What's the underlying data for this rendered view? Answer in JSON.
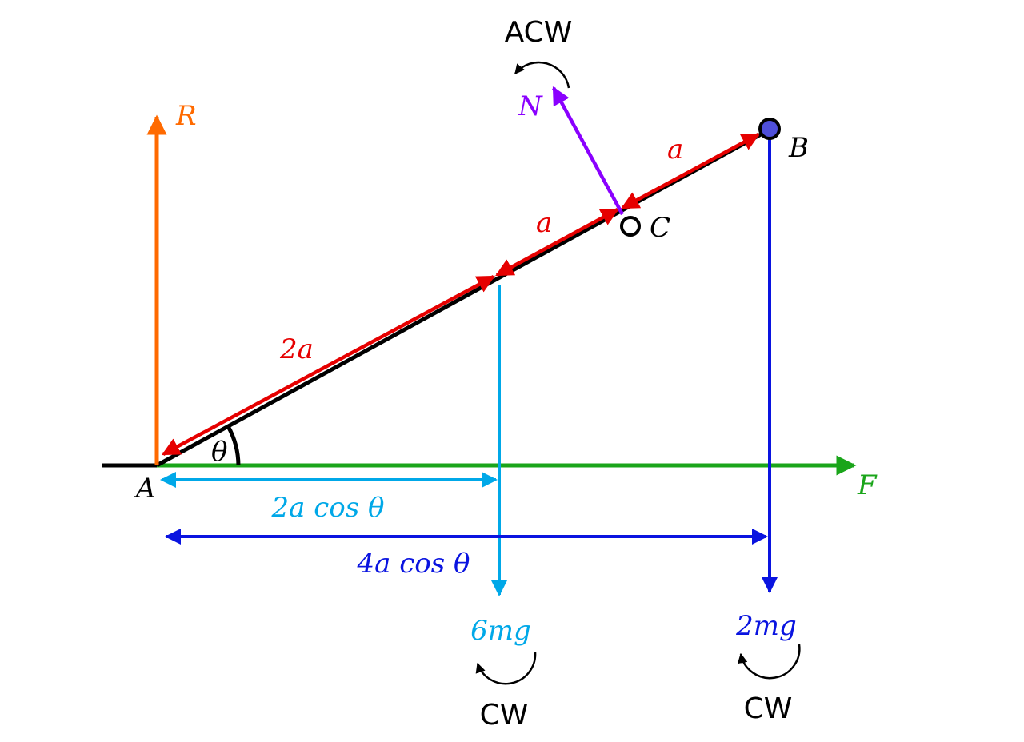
{
  "labels": {
    "R": "R",
    "N": "N",
    "B": "B",
    "C": "C",
    "A": "A",
    "F": "F",
    "theta": "θ",
    "seg_ab_upper": "a",
    "seg_ab_middle": "a",
    "seg_2a": "2a",
    "dist_2acos": "2a cos θ",
    "dist_4acos": "4a cos θ",
    "weight_6mg": "6mg",
    "weight_2mg": "2mg",
    "moment_N": "ACW",
    "moment_6mg": "CW",
    "moment_2mg": "CW"
  },
  "colors": {
    "rod": "#000000",
    "R": "#ff6a00",
    "N": "#8a00ff",
    "lengths": "#e60000",
    "weight_6mg": "#00a8e8",
    "weight_2mg": "#0a14e0",
    "F": "#1aa51a",
    "particle_B": "#4f4fd9",
    "moment_arrows": "#000000"
  }
}
